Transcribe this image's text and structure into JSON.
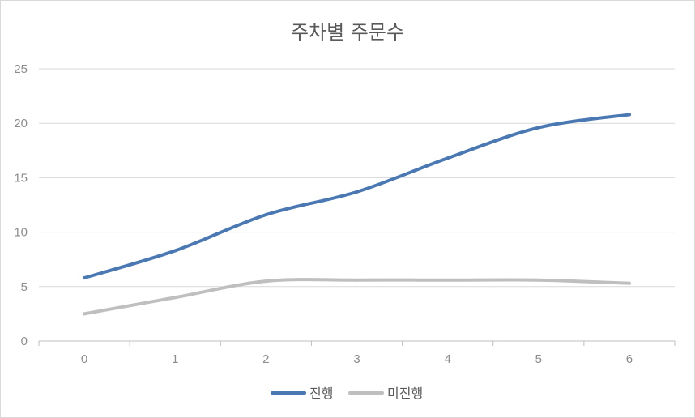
{
  "chart_data": {
    "type": "line",
    "title": "주차별 주문수",
    "xlabel": "",
    "ylabel": "",
    "x": [
      0,
      1,
      2,
      3,
      4,
      5,
      6
    ],
    "ylim": [
      0,
      25
    ],
    "yticks": [
      0,
      5,
      10,
      15,
      20,
      25
    ],
    "grid": true,
    "smooth": true,
    "legend_position": "bottom",
    "series": [
      {
        "name": "진행",
        "color": "#4a78b3",
        "values": [
          5.8,
          8.3,
          11.6,
          13.7,
          16.8,
          19.6,
          20.8
        ]
      },
      {
        "name": "미진행",
        "color": "#bfbfbf",
        "values": [
          2.5,
          4.0,
          5.5,
          5.6,
          5.6,
          5.6,
          5.3
        ]
      }
    ]
  }
}
